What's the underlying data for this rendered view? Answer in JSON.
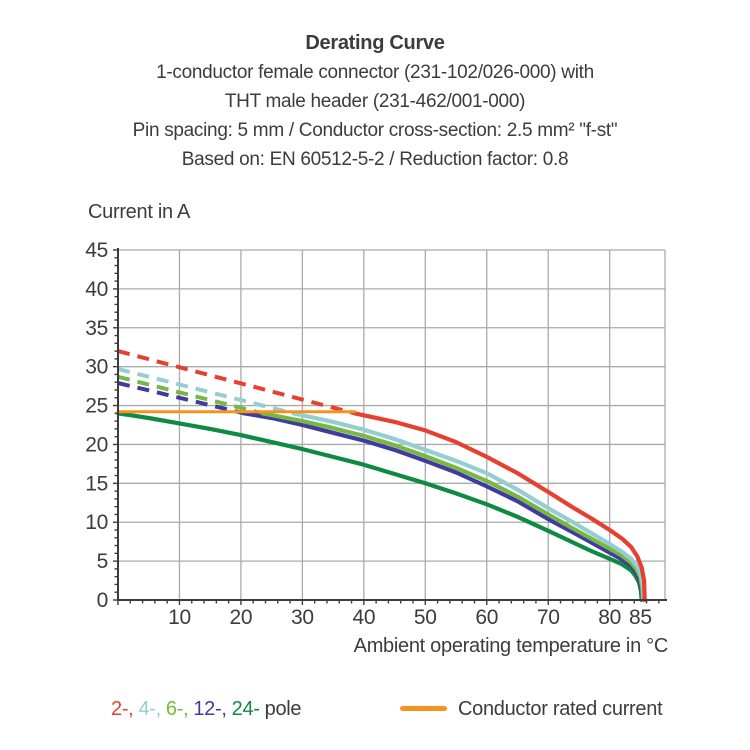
{
  "title": {
    "heading": "Derating Curve",
    "lines": [
      "1-conductor female connector (231-102/026-000) with",
      "THT male header (231-462/001-000)",
      "Pin spacing: 5 mm / Conductor cross-section: 2.5 mm² \"f-st\"",
      "Based on: EN 60512-5-2 / Reduction factor: 0.8"
    ]
  },
  "chart_data": {
    "type": "line",
    "title": "Derating Curve",
    "xlabel": "Ambient operating temperature in °C",
    "ylabel": "Current in A",
    "xlim": [
      0,
      89
    ],
    "ylim": [
      0,
      45
    ],
    "x_ticks_labeled": [
      10,
      20,
      30,
      40,
      50,
      60,
      70,
      80,
      85
    ],
    "x_minor_tick_step": 2,
    "y_ticks_labeled": [
      0,
      5,
      10,
      15,
      20,
      25,
      30,
      35,
      40,
      45
    ],
    "y_minor_tick_step": 1,
    "grid": true,
    "legend_position": "bottom",
    "colors": {
      "grid": "#aaaaaa",
      "axis": "#3c3c3c",
      "text": "#3c3c3c"
    },
    "rated_current_line": {
      "label": "Conductor rated current",
      "color": "#f6921e",
      "value_a": 24.2,
      "x_range": [
        0,
        38.5
      ]
    },
    "series": [
      {
        "name": "2-pole",
        "color": "#e74031",
        "dashed_points": [
          [
            0,
            32
          ],
          [
            38.5,
            24
          ]
        ],
        "solid_points": [
          [
            38.5,
            24
          ],
          [
            45,
            22.9
          ],
          [
            50,
            21.8
          ],
          [
            55,
            20.3
          ],
          [
            60,
            18.4
          ],
          [
            65,
            16.3
          ],
          [
            70,
            13.9
          ],
          [
            74,
            11.9
          ],
          [
            77,
            10.5
          ],
          [
            80,
            9.0
          ],
          [
            82,
            7.9
          ],
          [
            83.5,
            6.8
          ],
          [
            84.5,
            5.6
          ],
          [
            85.2,
            4.2
          ],
          [
            85.6,
            2.5
          ],
          [
            85.7,
            0
          ]
        ]
      },
      {
        "name": "4-pole",
        "color": "#94cdd2",
        "dashed_points": [
          [
            0,
            29.7
          ],
          [
            28.5,
            24
          ]
        ],
        "solid_points": [
          [
            28.5,
            24
          ],
          [
            35,
            22.9
          ],
          [
            40,
            21.9
          ],
          [
            45,
            20.7
          ],
          [
            50,
            19.3
          ],
          [
            55,
            17.9
          ],
          [
            60,
            16.3
          ],
          [
            65,
            14.2
          ],
          [
            70,
            11.8
          ],
          [
            74,
            10.0
          ],
          [
            77,
            8.6
          ],
          [
            80,
            7.2
          ],
          [
            82,
            6.2
          ],
          [
            83.5,
            5.3
          ],
          [
            84.5,
            4.3
          ],
          [
            85.1,
            3.2
          ],
          [
            85.4,
            1.8
          ],
          [
            85.5,
            0
          ]
        ]
      },
      {
        "name": "6-pole",
        "color": "#77b843",
        "dashed_points": [
          [
            0,
            28.7
          ],
          [
            23.5,
            24
          ]
        ],
        "solid_points": [
          [
            23.5,
            24
          ],
          [
            30,
            23.0
          ],
          [
            35,
            22.1
          ],
          [
            40,
            21.1
          ],
          [
            45,
            19.9
          ],
          [
            50,
            18.5
          ],
          [
            55,
            17.0
          ],
          [
            60,
            15.3
          ],
          [
            65,
            13.3
          ],
          [
            70,
            11.0
          ],
          [
            74,
            9.2
          ],
          [
            77,
            7.9
          ],
          [
            80,
            6.6
          ],
          [
            82,
            5.7
          ],
          [
            83.5,
            4.8
          ],
          [
            84.4,
            3.9
          ],
          [
            85.0,
            2.9
          ],
          [
            85.3,
            1.5
          ],
          [
            85.4,
            0
          ]
        ]
      },
      {
        "name": "12-pole",
        "color": "#413a9f",
        "dashed_points": [
          [
            0,
            27.9
          ],
          [
            20.5,
            24
          ]
        ],
        "solid_points": [
          [
            20.5,
            24
          ],
          [
            25,
            23.4
          ],
          [
            30,
            22.5
          ],
          [
            35,
            21.5
          ],
          [
            40,
            20.5
          ],
          [
            45,
            19.3
          ],
          [
            50,
            17.9
          ],
          [
            55,
            16.4
          ],
          [
            60,
            14.6
          ],
          [
            65,
            12.7
          ],
          [
            70,
            10.4
          ],
          [
            74,
            8.7
          ],
          [
            77,
            7.4
          ],
          [
            80,
            6.1
          ],
          [
            82,
            5.2
          ],
          [
            83.5,
            4.4
          ],
          [
            84.3,
            3.6
          ],
          [
            84.9,
            2.6
          ],
          [
            85.2,
            1.3
          ],
          [
            85.3,
            0
          ]
        ]
      },
      {
        "name": "24-pole",
        "color": "#0f8a43",
        "dashed_points": null,
        "solid_points": [
          [
            0,
            24
          ],
          [
            5,
            23.4
          ],
          [
            10,
            22.7
          ],
          [
            15,
            22.0
          ],
          [
            20,
            21.2
          ],
          [
            25,
            20.3
          ],
          [
            30,
            19.4
          ],
          [
            35,
            18.4
          ],
          [
            40,
            17.4
          ],
          [
            45,
            16.2
          ],
          [
            50,
            15.0
          ],
          [
            55,
            13.7
          ],
          [
            60,
            12.3
          ],
          [
            65,
            10.7
          ],
          [
            70,
            8.9
          ],
          [
            74,
            7.4
          ],
          [
            77,
            6.3
          ],
          [
            80,
            5.3
          ],
          [
            82,
            4.6
          ],
          [
            83.5,
            3.8
          ],
          [
            84.2,
            3.1
          ],
          [
            84.8,
            2.2
          ],
          [
            85.1,
            1.1
          ],
          [
            85.2,
            0
          ]
        ]
      }
    ]
  },
  "legend": {
    "poles": [
      {
        "text": "2-,",
        "color": "#e74031"
      },
      {
        "text": "4-,",
        "color": "#94cdd2"
      },
      {
        "text": "6-,",
        "color": "#77b843"
      },
      {
        "text": "12-,",
        "color": "#413a9f"
      },
      {
        "text": "24-",
        "color": "#0f8a43"
      },
      {
        "text": "pole",
        "color": "#3c3c3c"
      }
    ],
    "rated": {
      "label": "Conductor rated current",
      "color": "#f6921e"
    }
  }
}
